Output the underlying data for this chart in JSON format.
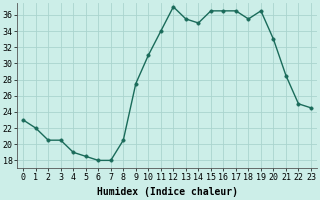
{
  "x": [
    0,
    1,
    2,
    3,
    4,
    5,
    6,
    7,
    8,
    9,
    10,
    11,
    12,
    13,
    14,
    15,
    16,
    17,
    18,
    19,
    20,
    21,
    22,
    23
  ],
  "y": [
    23,
    22,
    20.5,
    20.5,
    19,
    18.5,
    18,
    18,
    20.5,
    27.5,
    31,
    34,
    37,
    35.5,
    35,
    36.5,
    36.5,
    36.5,
    35.5,
    36.5,
    33,
    28.5,
    25,
    24.5
  ],
  "line_color": "#1a6b5a",
  "marker_color": "#1a6b5a",
  "bg_color": "#cceee8",
  "grid_color": "#aad4ce",
  "xlabel": "Humidex (Indice chaleur)",
  "ylim": [
    17,
    37.5
  ],
  "xlim": [
    -0.5,
    23.5
  ],
  "yticks": [
    18,
    20,
    22,
    24,
    26,
    28,
    30,
    32,
    34,
    36
  ],
  "xticks": [
    0,
    1,
    2,
    3,
    4,
    5,
    6,
    7,
    8,
    9,
    10,
    11,
    12,
    13,
    14,
    15,
    16,
    17,
    18,
    19,
    20,
    21,
    22,
    23
  ],
  "xtick_labels": [
    "0",
    "1",
    "2",
    "3",
    "4",
    "5",
    "6",
    "7",
    "8",
    "9",
    "10",
    "11",
    "12",
    "13",
    "14",
    "15",
    "16",
    "17",
    "18",
    "19",
    "20",
    "21",
    "22",
    "23"
  ],
  "ytick_labels": [
    "18",
    "20",
    "22",
    "24",
    "26",
    "28",
    "30",
    "32",
    "34",
    "36"
  ],
  "font_size": 6,
  "xlabel_fontsize": 7,
  "linewidth": 1.0,
  "markersize": 2.5
}
